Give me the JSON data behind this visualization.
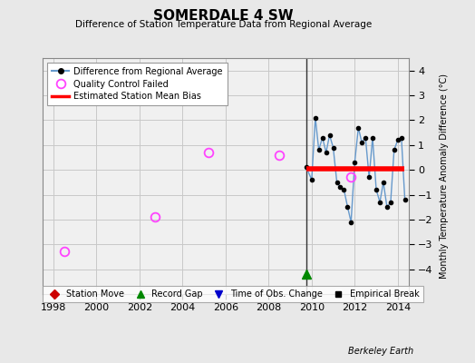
{
  "title": "SOMERDALE 4 SW",
  "subtitle": "Difference of Station Temperature Data from Regional Average",
  "ylabel": "Monthly Temperature Anomaly Difference (°C)",
  "xlabel_bottom": "Berkeley Earth",
  "xlim": [
    1997.5,
    2014.5
  ],
  "ylim": [
    -5,
    4.5
  ],
  "yticks": [
    -4,
    -3,
    -2,
    -1,
    0,
    1,
    2,
    3,
    4
  ],
  "xticks": [
    1998,
    2000,
    2002,
    2004,
    2006,
    2008,
    2010,
    2012,
    2014
  ],
  "bg_color": "#e8e8e8",
  "plot_bg_color": "#f0f0f0",
  "vertical_line_x": 2009.75,
  "qc_failed_points": [
    [
      1998.5,
      -3.3
    ],
    [
      2002.7,
      -1.9
    ],
    [
      2005.2,
      0.7
    ],
    [
      2008.5,
      0.6
    ],
    [
      2011.8,
      -0.3
    ]
  ],
  "record_gap_x": 2009.75,
  "record_gap_y": -4.2,
  "bias_line_x": [
    2009.75,
    2014.3
  ],
  "bias_line_y": [
    0.05,
    0.05
  ],
  "main_series_x": [
    2009.75,
    2010.0,
    2010.17,
    2010.33,
    2010.5,
    2010.67,
    2010.83,
    2011.0,
    2011.17,
    2011.33,
    2011.5,
    2011.67,
    2011.83,
    2012.0,
    2012.17,
    2012.33,
    2012.5,
    2012.67,
    2012.83,
    2013.0,
    2013.17,
    2013.33,
    2013.5,
    2013.67,
    2013.83,
    2014.0,
    2014.17,
    2014.33
  ],
  "main_series_y": [
    0.1,
    -0.4,
    2.1,
    0.8,
    1.3,
    0.7,
    1.4,
    0.9,
    -0.5,
    -0.7,
    -0.8,
    -1.5,
    -2.1,
    0.3,
    1.7,
    1.1,
    1.3,
    -0.3,
    1.3,
    -0.8,
    -1.3,
    -0.5,
    -1.5,
    -1.3,
    0.8,
    1.2,
    1.3,
    -1.2
  ],
  "grid_color": "#c8c8c8",
  "line_color": "#6699cc",
  "dot_color": "#000000",
  "bias_color": "#ff0000",
  "qc_color": "#ff44ff",
  "gap_color": "#008800",
  "station_move_color": "#cc0000",
  "obs_change_color": "#0000cc"
}
